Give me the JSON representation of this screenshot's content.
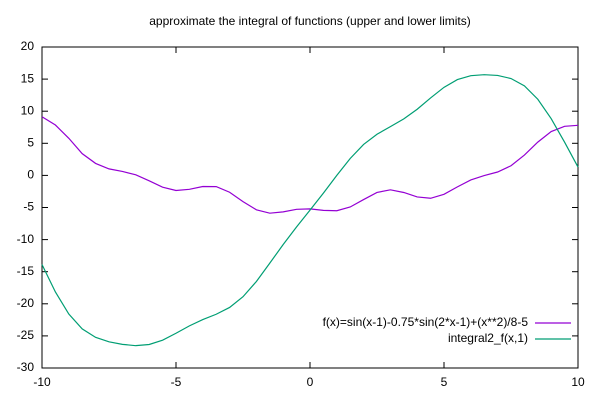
{
  "chart_data": {
    "type": "line",
    "title": "approximate the integral of functions (upper and lower limits)",
    "x": [
      -10,
      -9.5,
      -9,
      -8.5,
      -8,
      -7.5,
      -7,
      -6.5,
      -6,
      -5.5,
      -5,
      -4.5,
      -4,
      -3.5,
      -3,
      -2.5,
      -2,
      -1.5,
      -1,
      -0.5,
      0,
      0.5,
      1,
      1.5,
      2,
      2.5,
      3,
      3.5,
      4,
      4.5,
      5,
      5.5,
      6,
      6.5,
      7,
      7.5,
      8,
      8.5,
      9,
      9.5,
      10
    ],
    "series": [
      {
        "name": "f(x)=sin(x-1)-0.75*sin(2*x-1)+(x**2)/8-5",
        "color": "#9400d3",
        "values": [
          9.13,
          7.846,
          5.781,
          3.393,
          1.867,
          1.017,
          0.623,
          0.086,
          -0.842,
          -1.836,
          -2.346,
          -2.171,
          -1.732,
          -1.749,
          -2.625,
          -4.078,
          -5.36,
          -5.885,
          -5.679,
          -5.284,
          -5.21,
          -5.448,
          -5.506,
          -4.921,
          -3.764,
          -2.654,
          -2.247,
          -2.661,
          -3.352,
          -3.562,
          -2.941,
          -1.788,
          -0.709,
          -0.022,
          0.53,
          1.504,
          3.169,
          5.185,
          6.836,
          7.643,
          7.8
        ]
      },
      {
        "name": "integral2_f(x,1)",
        "color": "#009e73",
        "values": [
          -13.88,
          -18.16,
          -21.59,
          -23.91,
          -25.23,
          -25.92,
          -26.32,
          -26.52,
          -26.34,
          -25.66,
          -24.59,
          -23.44,
          -22.46,
          -21.63,
          -20.57,
          -18.9,
          -16.52,
          -13.67,
          -10.76,
          -8.02,
          -5.418,
          -2.76,
          0,
          2.637,
          4.822,
          6.409,
          7.597,
          8.797,
          10.3,
          12.07,
          13.72,
          14.92,
          15.53,
          15.69,
          15.57,
          15.09,
          13.95,
          11.86,
          8.83,
          5.17,
          1.3
        ]
      }
    ],
    "xlim": [
      -10,
      10
    ],
    "xticks": [
      -10,
      -5,
      0,
      5,
      10
    ],
    "ylim": [
      -30,
      20
    ],
    "yticks": [
      -30,
      -25,
      -20,
      -15,
      -10,
      -5,
      0,
      5,
      10,
      15,
      20
    ],
    "legend": "bottom right",
    "grid": false
  }
}
